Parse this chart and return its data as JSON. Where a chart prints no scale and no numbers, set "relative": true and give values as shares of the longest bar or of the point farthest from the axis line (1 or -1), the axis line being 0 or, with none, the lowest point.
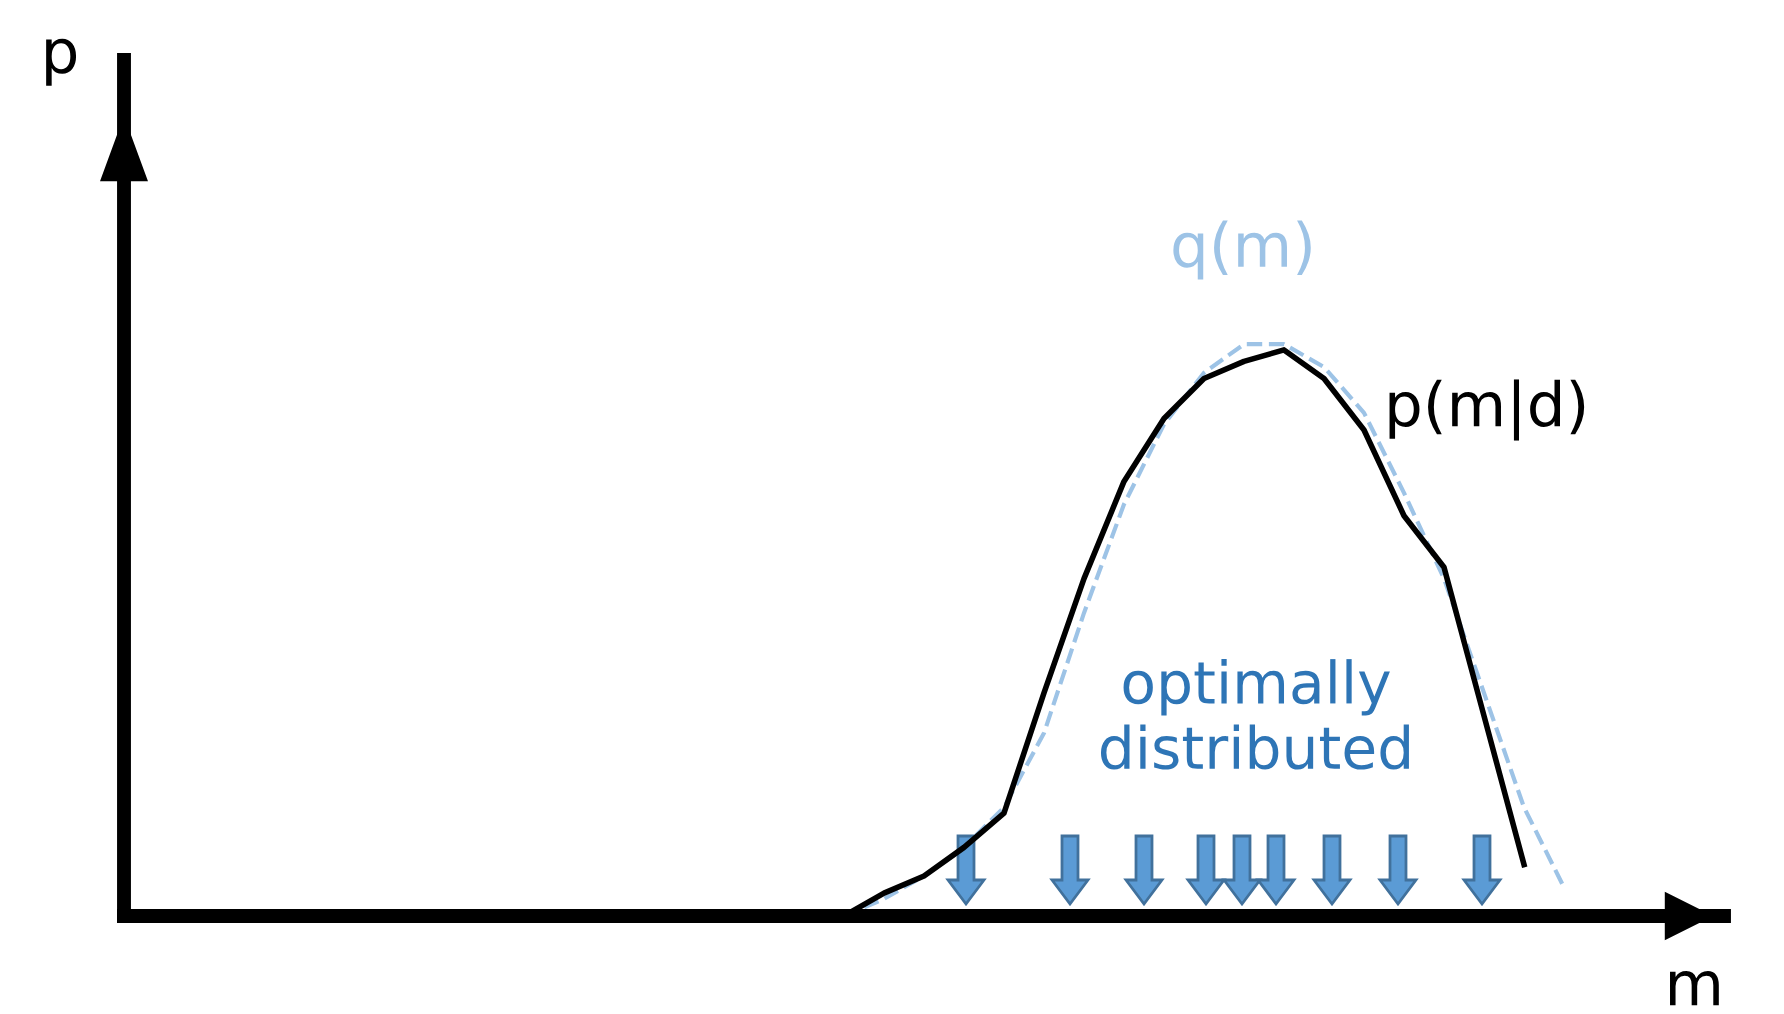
{
  "chart_data": {
    "type": "line",
    "relative": true,
    "xlabel": "m",
    "ylabel": "p",
    "categories": [
      null,
      null,
      null,
      null,
      null,
      null,
      null,
      null,
      null,
      null,
      null,
      null,
      null,
      null,
      null,
      null,
      null,
      null,
      null,
      null,
      null,
      null,
      null,
      null,
      null,
      null,
      null,
      null,
      null,
      null,
      null,
      null,
      null,
      null,
      null,
      null,
      null,
      null,
      null,
      null
    ],
    "series": [
      {
        "name": "p(m|d)",
        "color": "#000000",
        "line_style": "solid",
        "values": [
          null,
          null,
          null,
          null,
          null,
          null,
          null,
          null,
          null,
          null,
          null,
          null,
          null,
          null,
          null,
          null,
          null,
          null,
          0,
          0.04,
          0.07,
          0.12,
          0.18,
          0.39,
          0.59,
          0.76,
          0.87,
          0.94,
          0.97,
          0.99,
          0.94,
          0.85,
          0.7,
          0.61,
          0.35,
          0.09,
          null,
          null,
          null,
          null
        ]
      },
      {
        "name": "q(m)",
        "color": "#9dc3e6",
        "line_style": "dashed",
        "values": [
          null,
          null,
          null,
          null,
          null,
          null,
          null,
          null,
          null,
          null,
          null,
          null,
          null,
          null,
          null,
          null,
          null,
          null,
          0,
          0.03,
          0.07,
          0.12,
          0.19,
          0.32,
          0.53,
          0.72,
          0.86,
          0.95,
          1.0,
          1.0,
          0.96,
          0.88,
          0.74,
          0.59,
          0.39,
          0.19,
          0.05,
          null,
          null,
          null
        ]
      }
    ],
    "annotations": [
      "optimally distributed"
    ],
    "grid": false,
    "legend": false,
    "marker": "none"
  }
}
